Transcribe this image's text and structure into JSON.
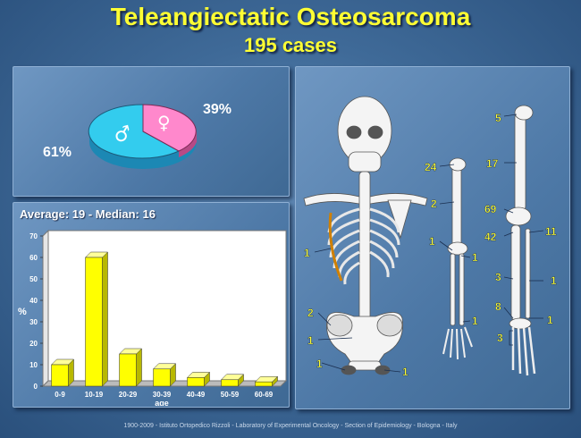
{
  "header": {
    "title": "Teleangiectatic Osteosarcoma",
    "subtitle": "195 cases"
  },
  "sex_pie": {
    "female_label": "39%",
    "male_label": "61%",
    "female_symbol": "♀",
    "male_symbol": "♂",
    "colors": {
      "female": "#ff88cc",
      "male": "#33ccee"
    }
  },
  "stats": {
    "text": "Average: 19  -  Median: 16"
  },
  "chart_data": [
    {
      "type": "pie",
      "categories": [
        "Female",
        "Male"
      ],
      "values": [
        39,
        61
      ],
      "title": "",
      "labels": [
        "39%",
        "61%"
      ]
    },
    {
      "type": "bar",
      "categories": [
        "0-9",
        "10-19",
        "20-29",
        "30-39",
        "40-49",
        "50-59",
        "60-69"
      ],
      "values": [
        10,
        60,
        15,
        8,
        4,
        3,
        2
      ],
      "title": "",
      "xlabel": "age",
      "ylabel": "%",
      "ylim": [
        0,
        70
      ],
      "yticks": [
        "0",
        "10",
        "20",
        "30",
        "40",
        "50",
        "60",
        "70"
      ],
      "grid": false,
      "bar_color": "#ffff00"
    }
  ],
  "skeleton": {
    "sites": {
      "ribs": "1",
      "pelvis_ilium": "2",
      "pelvis_mid": "1",
      "pelvis_low": "1",
      "pubis": "1",
      "humerus_proximal": "24",
      "humerus_shaft": "2",
      "humerus_distal": "1",
      "ulna": "1",
      "radius_distal": "1",
      "femur_head": "5",
      "femur_shaft": "17",
      "femur_distal": "69",
      "tibia_proximal": "42",
      "fibula_proximal": "11",
      "tibia_shaft": "3",
      "fibula_shaft": "1",
      "tibia_distal": "8",
      "fibula_distal": "1",
      "foot": "3"
    }
  },
  "footer": {
    "text": "1900-2009  -  Istituto Ortopedico Rizzoli  -  Laboratory of Experimental Oncology  -  Section of Epidemiology  -  Bologna  -  Italy"
  }
}
